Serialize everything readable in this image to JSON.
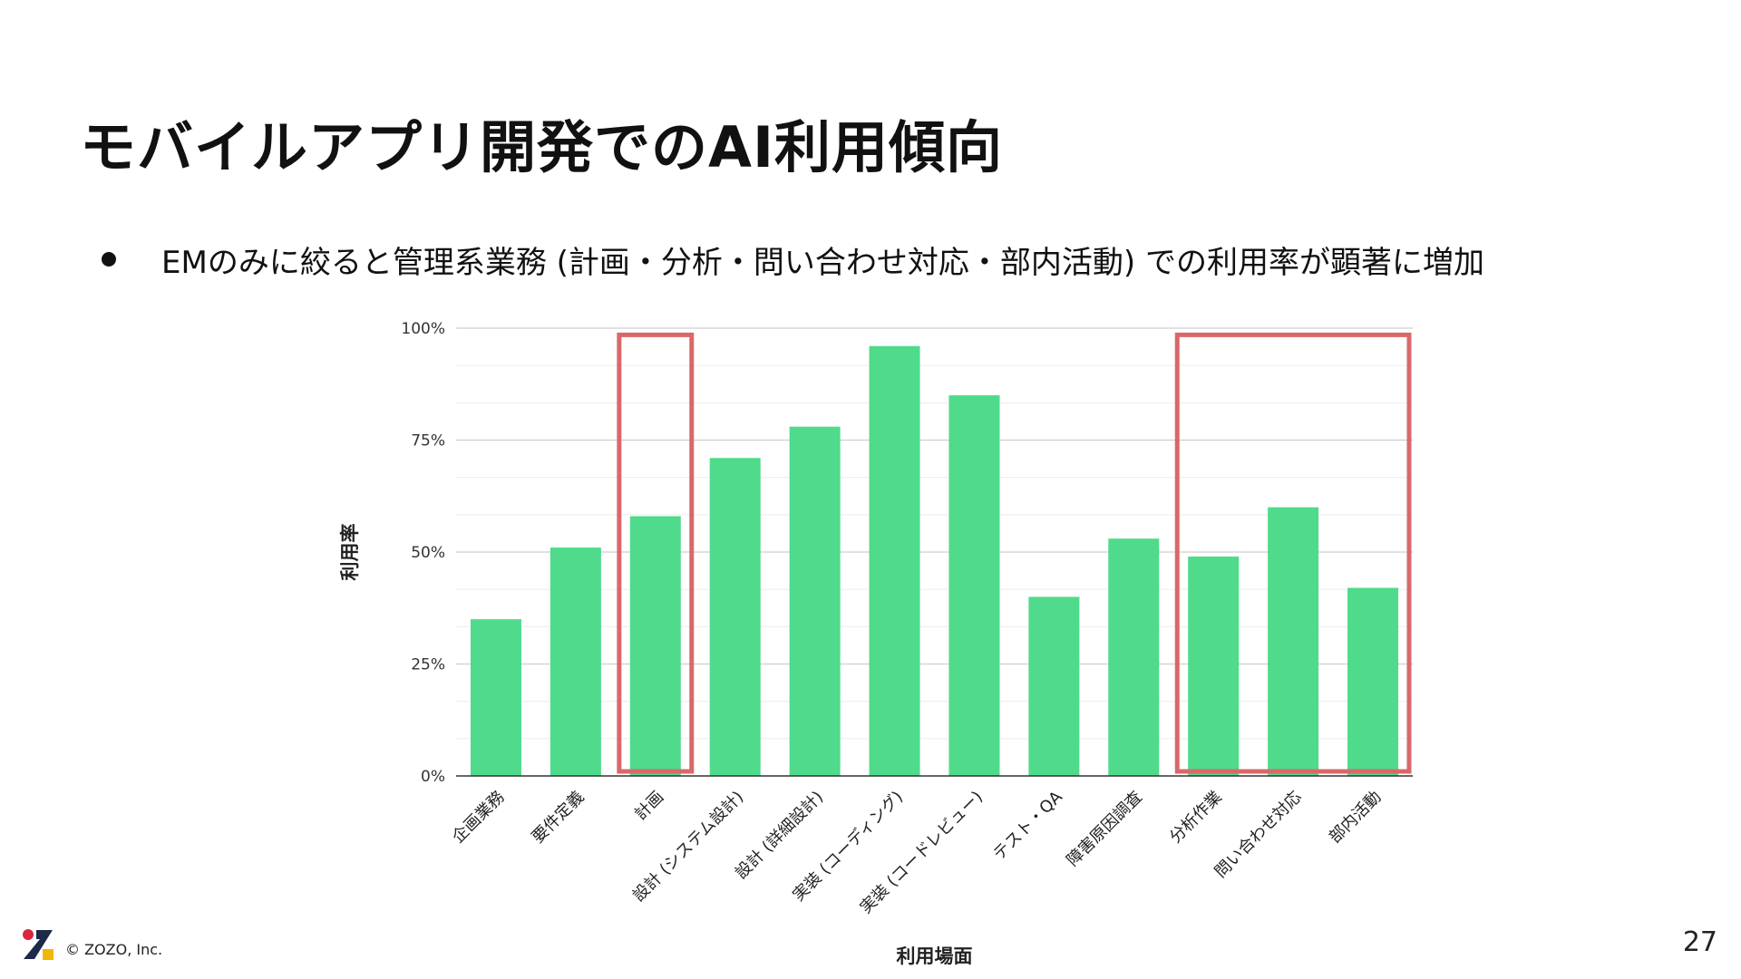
{
  "slide": {
    "title": "モバイルアプリ開発でのAI利用傾向",
    "bullet": "EMのみに絞ると管理系業務 (計画・分析・問い合わせ対応・部内活動) での利用率が顕著に増加",
    "footer_copyright": "© ZOZO, Inc.",
    "page_number": "27"
  },
  "chart_data": {
    "type": "bar",
    "title": "",
    "xlabel": "利用場面",
    "ylabel": "利用率",
    "categories": [
      "企画業務",
      "要件定義",
      "計画",
      "設計 (システム設計)",
      "設計 (詳細設計)",
      "実装 (コーディング)",
      "実装 (コードレビュー)",
      "テスト・QA",
      "障害原因調査",
      "分析作業",
      "問い合わせ対応",
      "部内活動"
    ],
    "values": [
      35,
      51,
      58,
      71,
      78,
      96,
      85,
      40,
      53,
      49,
      60,
      42
    ],
    "ylim": [
      0,
      100
    ],
    "yticks": [
      0,
      25,
      50,
      75,
      100
    ],
    "ytick_labels": [
      "0%",
      "25%",
      "50%",
      "75%",
      "100%"
    ],
    "grid": true,
    "bar_color": "#4fdb8b",
    "highlight_color": "#d9686a",
    "highlights": [
      {
        "from": "計画",
        "to": "計画"
      },
      {
        "from": "分析作業",
        "to": "部内活動"
      }
    ]
  },
  "colors": {
    "logo_red": "#d7263d",
    "logo_navy": "#1c2b4a",
    "logo_yellow": "#f2b705"
  }
}
